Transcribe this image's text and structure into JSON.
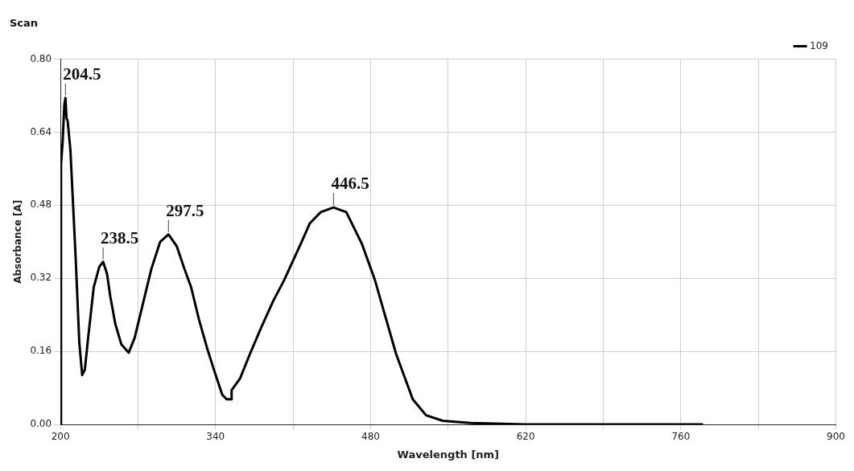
{
  "chart_data": {
    "type": "line",
    "title": "Scan",
    "xlabel": "Wavelength [nm]",
    "ylabel": "Absorbance [A]",
    "xlim": [
      200,
      900
    ],
    "ylim": [
      0,
      0.8
    ],
    "xticks": [
      200,
      {
        "value": 270,
        "label": null
      },
      340,
      {
        "value": 410,
        "label": null
      },
      480,
      {
        "value": 550,
        "label": null
      },
      620,
      {
        "value": 690,
        "label": null
      },
      760,
      {
        "value": 830,
        "label": null
      },
      900
    ],
    "yticks": [
      {
        "value": 0,
        "label": "0.00"
      },
      {
        "value": 0.16,
        "label": "0.16"
      },
      {
        "value": 0.32,
        "label": "0.32"
      },
      {
        "value": 0.48,
        "label": "0.48"
      },
      {
        "value": 0.64,
        "label": "0.64"
      },
      {
        "value": 0.8,
        "label": "0.80"
      }
    ],
    "grid": true,
    "legend": "top right",
    "marker": "none",
    "line_style": "solid",
    "x": [
      200,
      200.5,
      202,
      203.5,
      204.5,
      205.5,
      206.5,
      209,
      213.7,
      217,
      219.6,
      222,
      225,
      230,
      235,
      238.5,
      242,
      245,
      249.5,
      255,
      261.6,
      267,
      275,
      282,
      290,
      297.5,
      305,
      312,
      318,
      325,
      332,
      338.5,
      346,
      350,
      354,
      354.5,
      362,
      371,
      381,
      392,
      401.7,
      417,
      425,
      435,
      446.5,
      458,
      472,
      484,
      503,
      518,
      530,
      545,
      570,
      620,
      700,
      780
    ],
    "series": [
      {
        "name": "109",
        "color": "#000000",
        "values": [
          0,
          0.57,
          0.62,
          0.7,
          0.715,
          0.67,
          0.665,
          0.6,
          0.366,
          0.18,
          0.108,
          0.12,
          0.19,
          0.3,
          0.345,
          0.356,
          0.33,
          0.28,
          0.22,
          0.175,
          0.157,
          0.19,
          0.27,
          0.34,
          0.4,
          0.416,
          0.39,
          0.34,
          0.3,
          0.23,
          0.17,
          0.12,
          0.065,
          0.055,
          0.055,
          0.075,
          0.1,
          0.154,
          0.211,
          0.27,
          0.315,
          0.396,
          0.44,
          0.465,
          0.475,
          0.465,
          0.396,
          0.315,
          0.154,
          0.055,
          0.02,
          0.008,
          0.003,
          0,
          0,
          0
        ]
      }
    ],
    "annotations": [
      {
        "text": "204.5",
        "x": 204.5,
        "y": 0.715
      },
      {
        "text": "238.5",
        "x": 238.5,
        "y": 0.356
      },
      {
        "text": "297.5",
        "x": 297.5,
        "y": 0.416
      },
      {
        "text": "446.5",
        "x": 446.5,
        "y": 0.475
      }
    ]
  }
}
